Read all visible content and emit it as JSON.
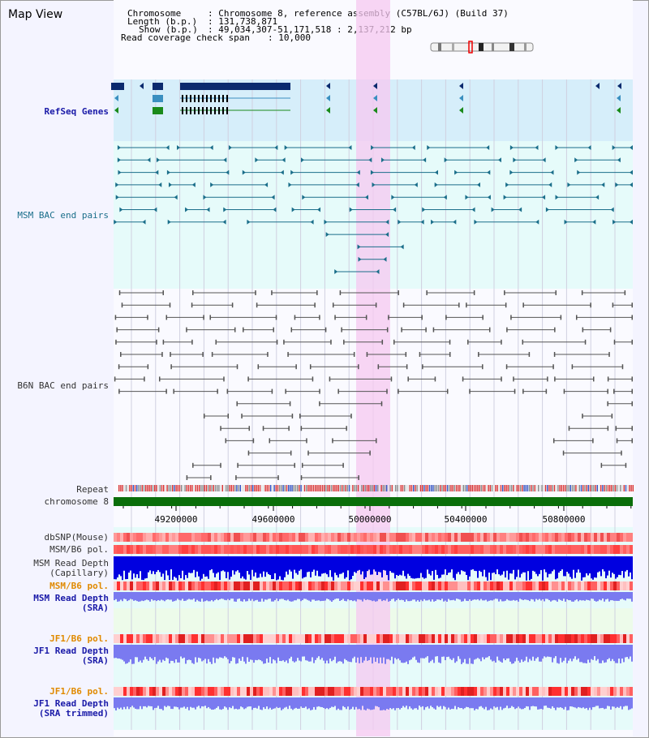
{
  "title": "Map View",
  "info": {
    "chromosome_label": "Chromosome",
    "chromosome_value": "Chromosome 8, reference assembly (C57BL/6J) (Build 37)",
    "length_label": "Length (b.p.)",
    "length_value": "131,738,871",
    "show_label": "Show (b.p.)",
    "show_value": "49,034,307-51,171,518 : 2,137,212 bp",
    "span_label": "Read coverage check span",
    "span_value": "10,000"
  },
  "tracks": {
    "refseq": "RefSeq Genes",
    "msm_bac": "MSM BAC end pairs",
    "b6n_bac": "B6N BAC end pairs",
    "repeat": "Repeat",
    "chromosome": "chromosome 8",
    "dbsnp": "dbSNP(Mouse)",
    "msm_b6_pol": "MSM/B6 pol.",
    "msm_read_depth": "MSM Read Depth",
    "capillary": "(Capillary)",
    "msm_b6_pol_sra": "MSM/B6 pol.",
    "msm_read_depth_sra": "MSM Read Depth",
    "sra": "(SRA)",
    "jf1_b6_pol": "JF1/B6 pol.",
    "jf1_read_depth": "JF1 Read Depth",
    "jf1_sra": "(SRA)",
    "jf1_b6_pol_trim": "JF1/B6 pol.",
    "jf1_read_depth_trim": "JF1 Read Depth",
    "sra_trimmed": "(SRA trimmed)"
  },
  "axis_ticks": [
    "49200000",
    "49600000",
    "50000000",
    "50400000",
    "50800000"
  ],
  "colors": {
    "highlight": "#f5c8f0",
    "refseq_bg": "#d6eefa",
    "bac_bg": "#e6fbfa",
    "chromosome_bar": "#0a6e0a",
    "dark_gene": "#0b2a6e",
    "mid_gene": "#3a8fc0",
    "green_gene": "#1a8a1a",
    "msm_bac": "#1a6e8a",
    "b6n_bac": "#555555",
    "depth_dark": "#0000e0",
    "depth_light": "#7a7af0"
  }
}
